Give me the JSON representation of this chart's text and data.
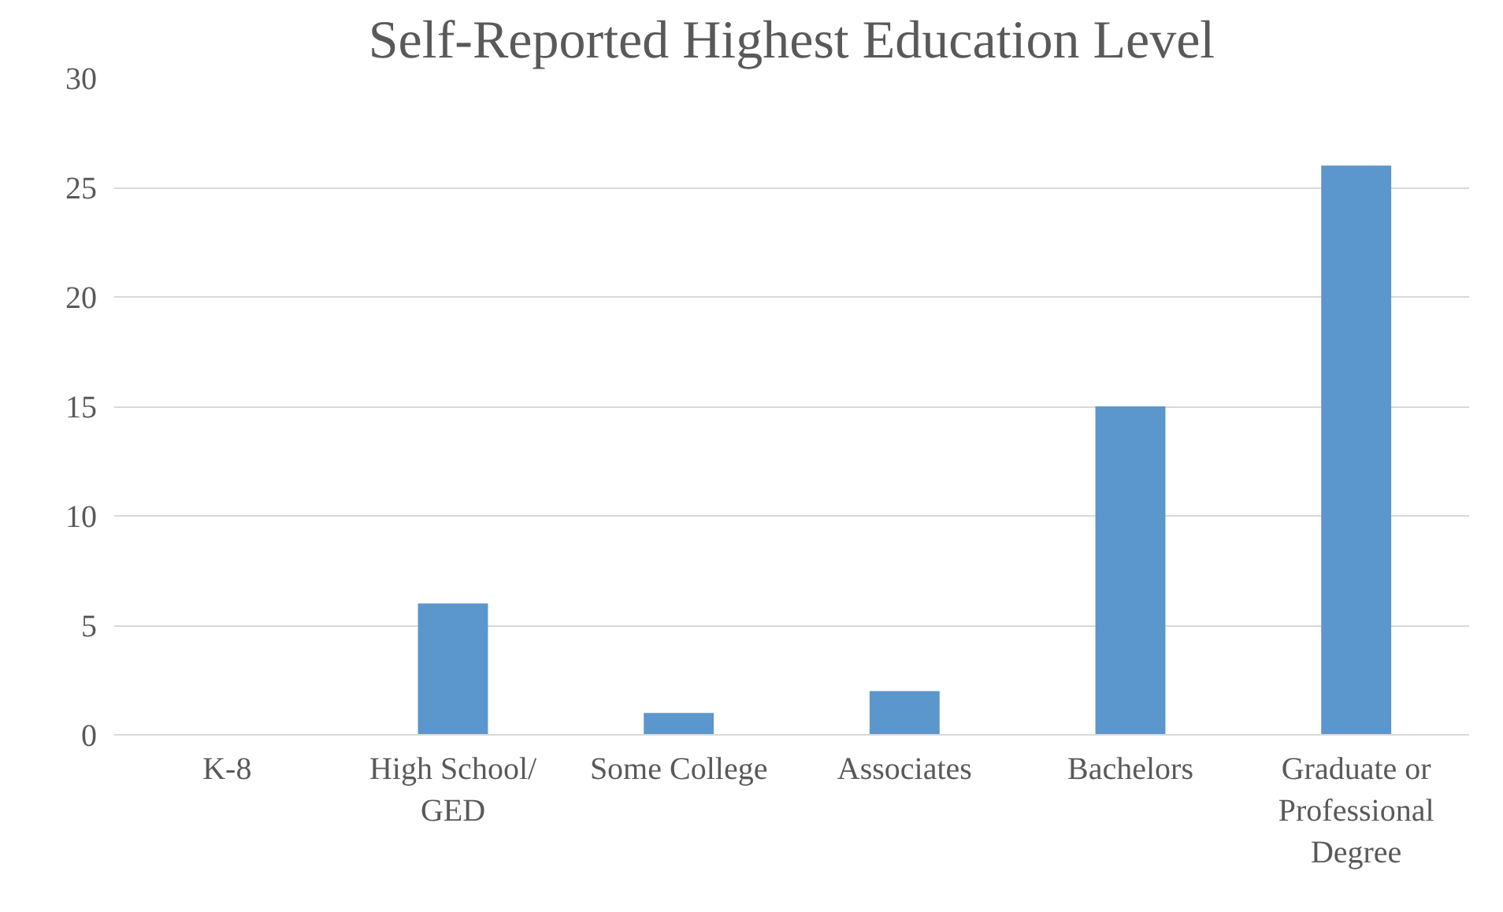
{
  "chart_data": {
    "type": "bar",
    "title": "Self-Reported Highest Education Level",
    "categories": [
      "K-8",
      "High School/ GED",
      "Some College",
      "Associates",
      "Bachelors",
      "Graduate or Professional Degree"
    ],
    "values": [
      0,
      6,
      1,
      2,
      15,
      26
    ],
    "color": "#5b96cd",
    "ylim": [
      0,
      30
    ],
    "yticks": [
      0,
      5,
      10,
      15,
      20,
      25,
      30
    ],
    "grid": "y"
  }
}
